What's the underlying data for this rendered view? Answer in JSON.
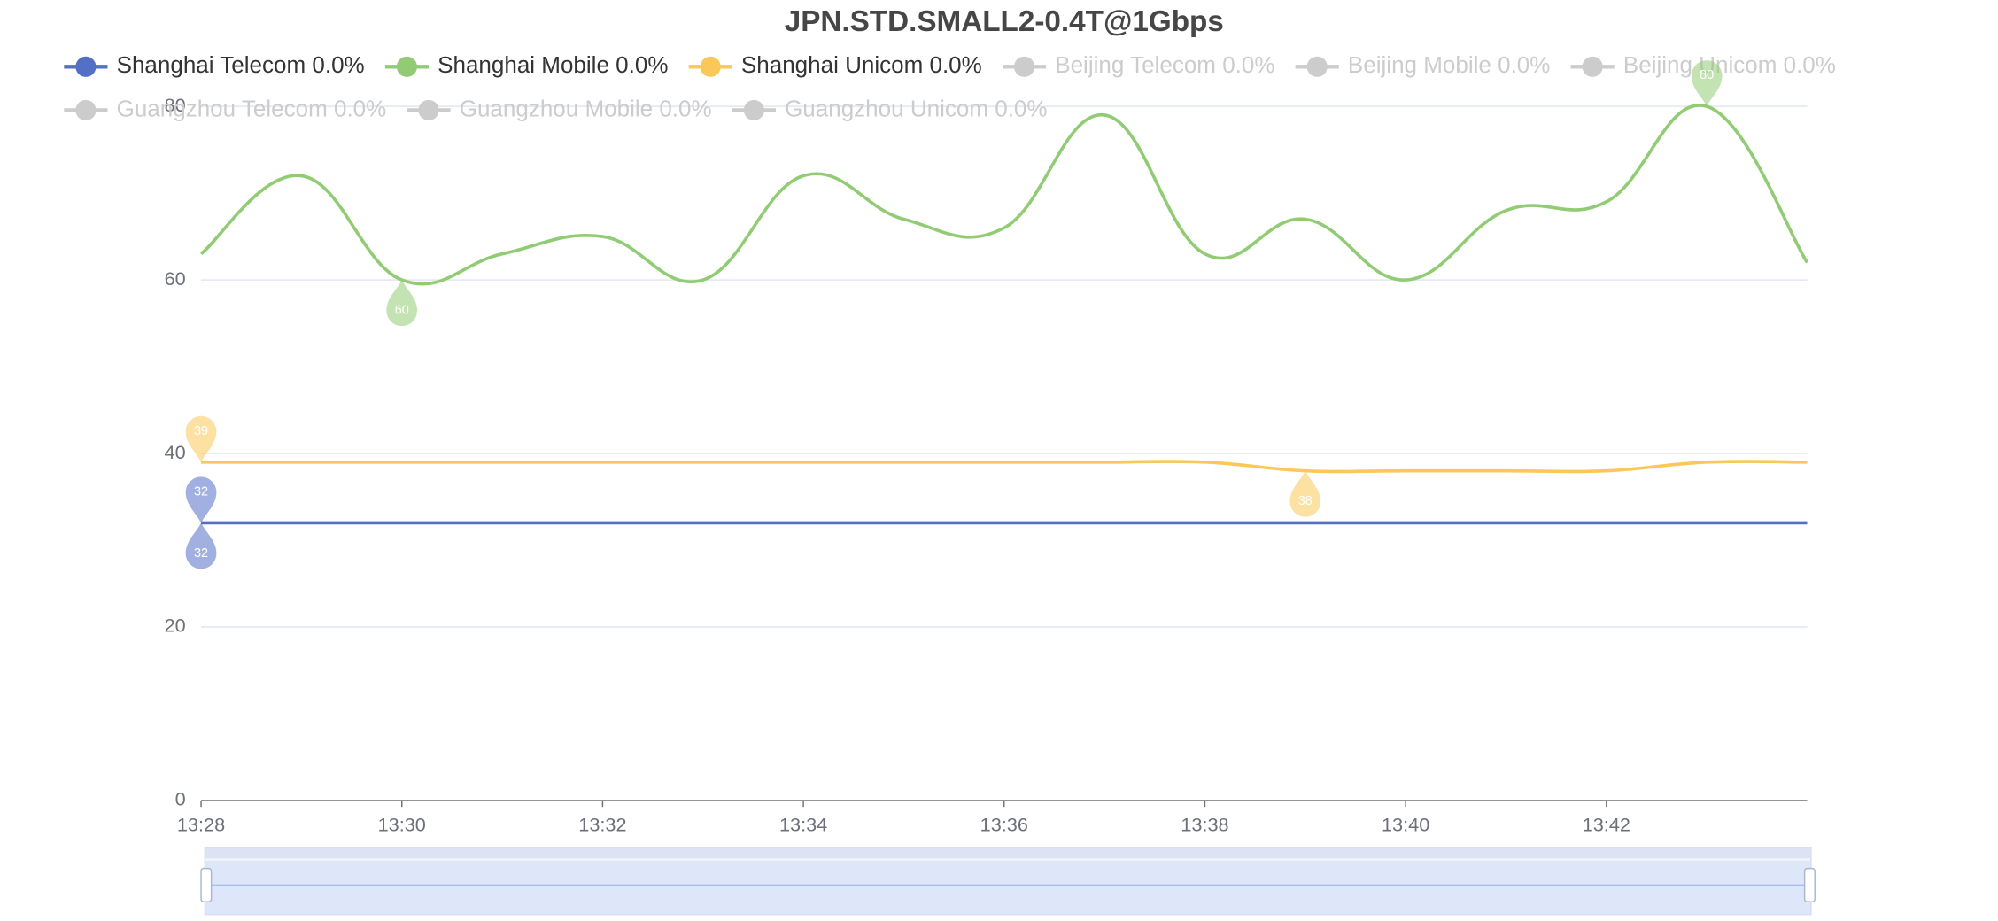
{
  "chart_data": {
    "type": "line",
    "title": "JPN.STD.SMALL2-0.4T@1Gbps",
    "categories": [
      "13:28",
      null,
      "13:30",
      null,
      "13:32",
      null,
      "13:34",
      null,
      "13:36",
      null,
      "13:38",
      null,
      "13:40",
      null,
      "13:42",
      null,
      null
    ],
    "series": [
      {
        "name": "Shanghai Telecom 0.0%",
        "color": "#5470c6",
        "values": [
          32,
          32,
          32,
          32,
          32,
          32,
          32,
          32,
          32,
          32,
          32,
          32,
          32,
          32,
          32,
          32,
          32
        ]
      },
      {
        "name": "Shanghai Mobile 0.0%",
        "color": "#91cc75",
        "values": [
          63,
          72,
          60,
          63,
          65,
          60,
          72,
          67,
          66,
          79,
          63,
          67,
          60,
          68,
          69,
          80,
          62
        ]
      },
      {
        "name": "Shanghai Unicom 0.0%",
        "color": "#fac858",
        "values": [
          39,
          39,
          39,
          39,
          39,
          39,
          39,
          39,
          39,
          39,
          39,
          38,
          38,
          38,
          38,
          39,
          39
        ]
      },
      {
        "name": "Beijing Telecom 0.0%",
        "color": "#cccccc"
      },
      {
        "name": "Beijing Mobile 0.0%",
        "color": "#cccccc"
      },
      {
        "name": "Beijing Unicom 0.0%",
        "color": "#cccccc"
      },
      {
        "name": "Guangzhou Telecom 0.0%",
        "color": "#cccccc"
      },
      {
        "name": "Guangzhou Mobile 0.0%",
        "color": "#cccccc"
      },
      {
        "name": "Guangzhou Unicom 0.0%",
        "color": "#cccccc"
      }
    ],
    "ylim": [
      0,
      80
    ],
    "yticks": [
      0,
      20,
      40,
      60,
      80
    ],
    "grid": true,
    "smooth": true
  }
}
